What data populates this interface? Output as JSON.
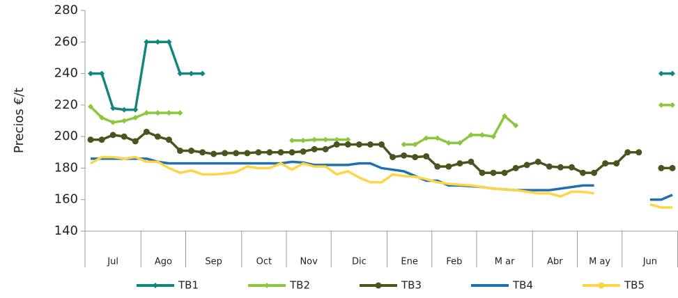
{
  "chart_data": {
    "type": "line",
    "y_label": "Precios €/t",
    "categories": [
      "Jul",
      null,
      null,
      null,
      null,
      "Ago",
      null,
      null,
      null,
      "Sep",
      null,
      null,
      null,
      null,
      "Oct",
      null,
      null,
      null,
      "Nov",
      null,
      null,
      null,
      "Dic",
      null,
      null,
      null,
      null,
      "Ene",
      null,
      null,
      null,
      "Feb",
      null,
      null,
      null,
      "M ar",
      null,
      null,
      null,
      null,
      "Abr",
      null,
      null,
      null,
      "M ay",
      null,
      null,
      null,
      "Jun",
      null,
      null,
      null,
      null
    ],
    "ylim": [
      140,
      280
    ],
    "yticks": [
      140,
      160,
      180,
      200,
      220,
      240,
      260,
      280
    ],
    "legend": "bottom",
    "series": [
      {
        "name": "TB1",
        "color": "#13857f",
        "marker": "diamond",
        "values": [
          240,
          240,
          218,
          217,
          217,
          260,
          260,
          260,
          240,
          240,
          240,
          null,
          null,
          null,
          null,
          null,
          null,
          null,
          null,
          null,
          null,
          null,
          null,
          null,
          null,
          null,
          null,
          null,
          null,
          null,
          null,
          null,
          null,
          null,
          null,
          null,
          null,
          null,
          null,
          null,
          null,
          null,
          null,
          null,
          null,
          null,
          null,
          null,
          null,
          null,
          null,
          240,
          240
        ]
      },
      {
        "name": "TB2",
        "color": "#8cc63e",
        "marker": "diamond",
        "values": [
          219,
          212,
          209,
          210,
          212,
          215,
          215,
          215,
          215,
          null,
          null,
          null,
          null,
          null,
          null,
          null,
          null,
          null,
          197.5,
          197.5,
          198,
          198,
          198,
          198,
          null,
          null,
          null,
          null,
          195,
          195,
          199,
          199,
          196,
          196,
          201,
          201,
          200,
          213,
          207,
          null,
          null,
          null,
          null,
          null,
          null,
          null,
          null,
          null,
          null,
          null,
          null,
          220,
          220
        ]
      },
      {
        "name": "TB3",
        "color": "#4b5320",
        "marker": "circle",
        "values": [
          198,
          198,
          201,
          200,
          197,
          203,
          200,
          198,
          191,
          191,
          190,
          189,
          189.5,
          189.5,
          189.5,
          190,
          190,
          190,
          190,
          190.5,
          192,
          192,
          195,
          195,
          195,
          195,
          195,
          187,
          188,
          187,
          187.5,
          181,
          181,
          183,
          184,
          177,
          177,
          177,
          180,
          182,
          184,
          181,
          180.5,
          180.5,
          177,
          177,
          183,
          183,
          190,
          190,
          null,
          180,
          180
        ]
      },
      {
        "name": "TB4",
        "color": "#1f6fb2",
        "marker": "none",
        "values": [
          186,
          186,
          186,
          186,
          186,
          186,
          184,
          183,
          183,
          183,
          183,
          183,
          183,
          183,
          183,
          183,
          183,
          183,
          184,
          183.5,
          182,
          182,
          182,
          182,
          183,
          183,
          180,
          179,
          178,
          175,
          172,
          172,
          169,
          169,
          168.5,
          168,
          167,
          166.5,
          166,
          166,
          166,
          166,
          167,
          168,
          169,
          169,
          null,
          null,
          null,
          null,
          160,
          160,
          163
        ]
      },
      {
        "name": "TB5",
        "color": "#fdd545",
        "marker": "circle",
        "values": [
          183,
          187,
          187,
          186,
          187,
          184,
          184,
          180,
          177,
          178.5,
          176,
          176,
          176.5,
          177.5,
          181,
          180,
          180,
          183,
          179,
          183,
          181,
          181,
          176,
          178,
          174,
          171,
          171,
          176,
          175,
          174.5,
          173,
          171,
          170,
          169.5,
          169,
          168,
          167,
          166.5,
          166,
          165,
          164,
          164,
          162,
          165,
          165,
          164,
          null,
          null,
          null,
          null,
          157,
          155,
          155
        ]
      }
    ]
  }
}
